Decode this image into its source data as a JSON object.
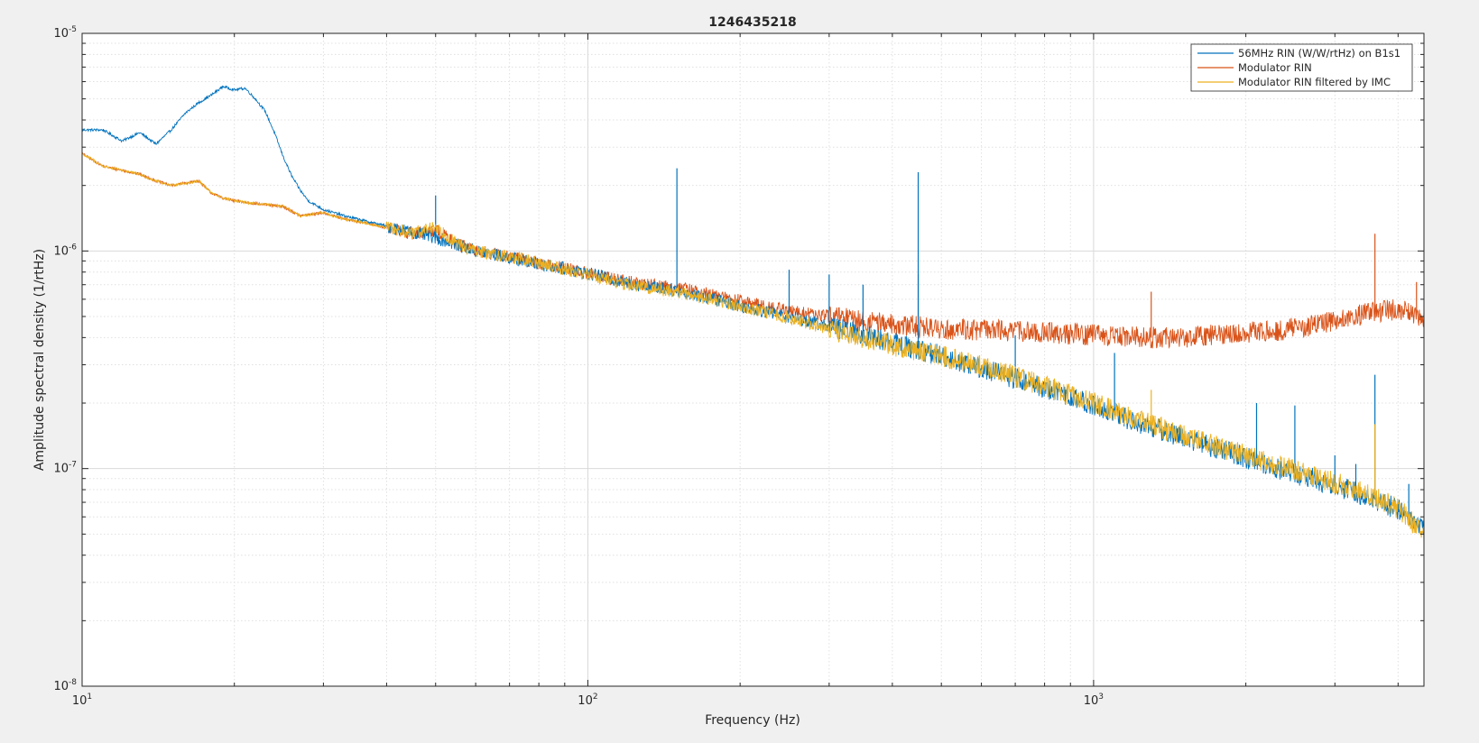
{
  "chart_data": {
    "type": "line",
    "title": "1246435218",
    "xlabel": "Frequency (Hz)",
    "ylabel": "Amplitude spectral density (1/rtHz)",
    "x_scale": "log",
    "y_scale": "log",
    "xlim": [
      10,
      4500
    ],
    "ylim": [
      1e-08,
      1e-05
    ],
    "x_ticks": [
      {
        "value": 10,
        "base": "10",
        "exp": "1"
      },
      {
        "value": 100,
        "base": "10",
        "exp": "2"
      },
      {
        "value": 1000,
        "base": "10",
        "exp": "3"
      }
    ],
    "y_ticks": [
      {
        "value": 1e-08,
        "base": "10",
        "exp": "-8"
      },
      {
        "value": 1e-07,
        "base": "10",
        "exp": "-7"
      },
      {
        "value": 1e-06,
        "base": "10",
        "exp": "-6"
      },
      {
        "value": 1e-05,
        "base": "10",
        "exp": "-5"
      }
    ],
    "grid": true,
    "minor_grid": true,
    "legend_position": "top-right",
    "series": [
      {
        "name": "56MHz RIN (W/W/rtHz) on B1s1",
        "color": "#0072BD",
        "points": [
          [
            10,
            3.6e-06
          ],
          [
            11,
            3.6e-06
          ],
          [
            12,
            3.2e-06
          ],
          [
            13,
            3.5e-06
          ],
          [
            14,
            3.1e-06
          ],
          [
            15,
            3.6e-06
          ],
          [
            16,
            4.3e-06
          ],
          [
            17,
            4.8e-06
          ],
          [
            18,
            5.2e-06
          ],
          [
            19,
            5.7e-06
          ],
          [
            20,
            5.5e-06
          ],
          [
            21,
            5.6e-06
          ],
          [
            22,
            5e-06
          ],
          [
            23,
            4.4e-06
          ],
          [
            24,
            3.5e-06
          ],
          [
            25,
            2.7e-06
          ],
          [
            26,
            2.2e-06
          ],
          [
            27,
            1.9e-06
          ],
          [
            28,
            1.7e-06
          ],
          [
            30,
            1.55e-06
          ],
          [
            33,
            1.45e-06
          ],
          [
            36,
            1.38e-06
          ],
          [
            40,
            1.3e-06
          ],
          [
            45,
            1.22e-06
          ],
          [
            50,
            1.15e-06
          ],
          [
            55,
            1.07e-06
          ],
          [
            60,
            1e-06
          ],
          [
            70,
            9.3e-07
          ],
          [
            80,
            8.7e-07
          ],
          [
            90,
            8.3e-07
          ],
          [
            100,
            7.9e-07
          ],
          [
            120,
            7.1e-07
          ],
          [
            150,
            6.6e-07
          ],
          [
            200,
            5.6e-07
          ],
          [
            250,
            5e-07
          ],
          [
            300,
            4.5e-07
          ],
          [
            400,
            3.8e-07
          ],
          [
            500,
            3.3e-07
          ],
          [
            600,
            2.9e-07
          ],
          [
            700,
            2.6e-07
          ],
          [
            800,
            2.35e-07
          ],
          [
            1000,
            1.95e-07
          ],
          [
            1200,
            1.65e-07
          ],
          [
            1500,
            1.4e-07
          ],
          [
            2000,
            1.12e-07
          ],
          [
            2500,
            9.5e-08
          ],
          [
            3000,
            8.4e-08
          ],
          [
            3500,
            7.4e-08
          ],
          [
            4000,
            6.5e-08
          ],
          [
            4500,
            5.3e-08
          ]
        ],
        "spikes": [
          [
            50,
            1.8e-06
          ],
          [
            150,
            2.4e-06
          ],
          [
            250,
            8.2e-07
          ],
          [
            300,
            7.8e-07
          ],
          [
            350,
            7e-07
          ],
          [
            450,
            2.3e-06
          ],
          [
            700,
            4.1e-07
          ],
          [
            1100,
            3.4e-07
          ],
          [
            2100,
            2e-07
          ],
          [
            2500,
            1.95e-07
          ],
          [
            3000,
            1.15e-07
          ],
          [
            3300,
            1.05e-07
          ],
          [
            3600,
            2.7e-07
          ],
          [
            4200,
            8.5e-08
          ]
        ]
      },
      {
        "name": "Modulator RIN",
        "color": "#D95319",
        "points": [
          [
            10,
            2.8e-06
          ],
          [
            11,
            2.45e-06
          ],
          [
            12,
            2.35e-06
          ],
          [
            13,
            2.25e-06
          ],
          [
            14,
            2.1e-06
          ],
          [
            15,
            2e-06
          ],
          [
            16,
            2.05e-06
          ],
          [
            17,
            2.1e-06
          ],
          [
            18,
            1.85e-06
          ],
          [
            19,
            1.75e-06
          ],
          [
            20,
            1.7e-06
          ],
          [
            22,
            1.65e-06
          ],
          [
            25,
            1.6e-06
          ],
          [
            27,
            1.45e-06
          ],
          [
            30,
            1.5e-06
          ],
          [
            33,
            1.4e-06
          ],
          [
            36,
            1.35e-06
          ],
          [
            40,
            1.28e-06
          ],
          [
            45,
            1.2e-06
          ],
          [
            50,
            1.25e-06
          ],
          [
            55,
            1.08e-06
          ],
          [
            60,
            1e-06
          ],
          [
            70,
            9.4e-07
          ],
          [
            80,
            8.8e-07
          ],
          [
            100,
            7.9e-07
          ],
          [
            120,
            7.2e-07
          ],
          [
            150,
            6.8e-07
          ],
          [
            200,
            5.9e-07
          ],
          [
            250,
            5.3e-07
          ],
          [
            300,
            5e-07
          ],
          [
            400,
            4.6e-07
          ],
          [
            500,
            4.4e-07
          ],
          [
            700,
            4.3e-07
          ],
          [
            1000,
            4.1e-07
          ],
          [
            1300,
            4e-07
          ],
          [
            1600,
            4.05e-07
          ],
          [
            2000,
            4.2e-07
          ],
          [
            2500,
            4.4e-07
          ],
          [
            3000,
            4.8e-07
          ],
          [
            3500,
            5.2e-07
          ],
          [
            4000,
            5.4e-07
          ],
          [
            4500,
            5e-07
          ]
        ],
        "spikes": [
          [
            450,
            7.8e-07
          ],
          [
            1300,
            6.5e-07
          ],
          [
            3600,
            1.2e-06
          ],
          [
            4350,
            7.2e-07
          ]
        ]
      },
      {
        "name": "Modulator RIN filtered by IMC",
        "color": "#EDB120",
        "points": [
          [
            10,
            2.8e-06
          ],
          [
            11,
            2.45e-06
          ],
          [
            12,
            2.35e-06
          ],
          [
            13,
            2.25e-06
          ],
          [
            14,
            2.1e-06
          ],
          [
            15,
            2e-06
          ],
          [
            16,
            2.05e-06
          ],
          [
            17,
            2.1e-06
          ],
          [
            18,
            1.85e-06
          ],
          [
            19,
            1.75e-06
          ],
          [
            20,
            1.7e-06
          ],
          [
            22,
            1.65e-06
          ],
          [
            25,
            1.6e-06
          ],
          [
            27,
            1.45e-06
          ],
          [
            30,
            1.5e-06
          ],
          [
            33,
            1.4e-06
          ],
          [
            36,
            1.35e-06
          ],
          [
            40,
            1.28e-06
          ],
          [
            45,
            1.2e-06
          ],
          [
            50,
            1.3e-06
          ],
          [
            55,
            1.08e-06
          ],
          [
            60,
            1e-06
          ],
          [
            70,
            9.4e-07
          ],
          [
            80,
            8.8e-07
          ],
          [
            100,
            7.8e-07
          ],
          [
            120,
            7e-07
          ],
          [
            150,
            6.5e-07
          ],
          [
            200,
            5.6e-07
          ],
          [
            250,
            4.9e-07
          ],
          [
            300,
            4.4e-07
          ],
          [
            400,
            3.7e-07
          ],
          [
            500,
            3.3e-07
          ],
          [
            600,
            2.95e-07
          ],
          [
            700,
            2.65e-07
          ],
          [
            800,
            2.4e-07
          ],
          [
            1000,
            2e-07
          ],
          [
            1200,
            1.7e-07
          ],
          [
            1500,
            1.42e-07
          ],
          [
            2000,
            1.15e-07
          ],
          [
            2500,
            9.8e-08
          ],
          [
            3000,
            8.6e-08
          ],
          [
            3500,
            7.6e-08
          ],
          [
            4000,
            6.6e-08
          ],
          [
            4500,
            5e-08
          ]
        ],
        "spikes": [
          [
            1300,
            2.3e-07
          ],
          [
            3600,
            1.6e-07
          ]
        ]
      }
    ]
  }
}
